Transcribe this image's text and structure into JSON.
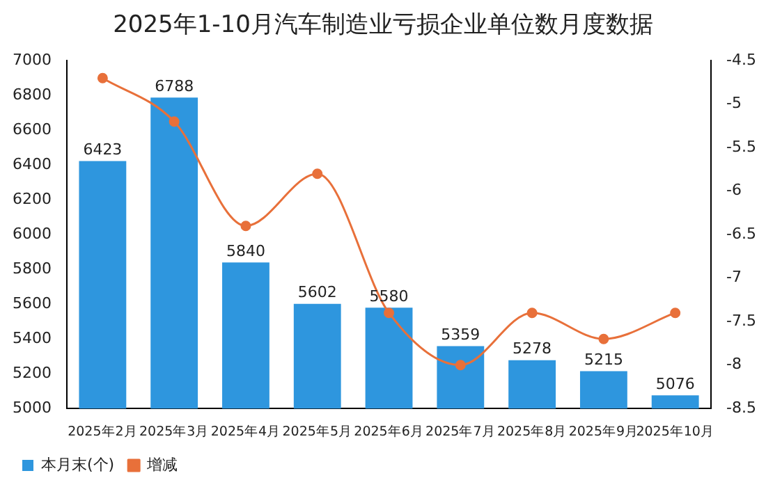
{
  "chart_data": {
    "type": "bar",
    "title": "2025年1-10月汽车制造业亏损企业单位数月度数据",
    "categories": [
      "2025年2月",
      "2025年3月",
      "2025年4月",
      "2025年5月",
      "2025年6月",
      "2025年7月",
      "2025年8月",
      "2025年9月",
      "2025年10月"
    ],
    "series": [
      {
        "name": "本月末(个)",
        "color": "#2e96de",
        "values": [
          6423,
          6788,
          5840,
          5602,
          5580,
          5359,
          5278,
          5215,
          5076
        ],
        "value_labels": [
          "6423",
          "6788",
          "5840",
          "5602",
          "5580",
          "5359",
          "5278",
          "5215",
          "5076"
        ]
      },
      {
        "name": "增减",
        "type": "line",
        "axis": "y2",
        "color": "#e8703a",
        "values": [
          -4.7,
          -5.2,
          -6.4,
          -5.8,
          -7.4,
          -8.0,
          -7.4,
          -7.7,
          -7.4
        ]
      }
    ],
    "ylim": [
      5000,
      7000
    ],
    "yticks": [
      5000,
      5200,
      5400,
      5600,
      5800,
      6000,
      6200,
      6400,
      6600,
      6800,
      7000
    ],
    "y2lim": [
      -8.5,
      -4.5
    ],
    "y2ticks": [
      -8.5,
      -8,
      -7.5,
      -7,
      -6.5,
      -6,
      -5.5,
      -5,
      -4.5
    ],
    "grid": false,
    "legend": "bottom left",
    "marker": "circle"
  }
}
